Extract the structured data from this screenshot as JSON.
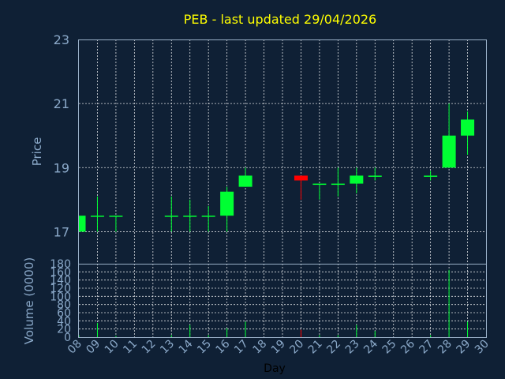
{
  "colors": {
    "background": "#0f2035",
    "up": "#00ff33",
    "down": "#ff0000",
    "title": "#ffff00",
    "axis_text": "#8ba9c9",
    "grid": "#ffffff"
  },
  "chart_data": {
    "type": "candlestick",
    "title": "PEB - last updated 29/04/2026",
    "xlabel": "Day",
    "price_ylabel": "Price",
    "volume_ylabel": "Volume (0000)",
    "x_ticks": [
      "08",
      "09",
      "10",
      "11",
      "12",
      "13",
      "14",
      "15",
      "16",
      "17",
      "18",
      "19",
      "20",
      "21",
      "22",
      "23",
      "24",
      "25",
      "26",
      "27",
      "28",
      "29",
      "30"
    ],
    "price_ylim": [
      16,
      23
    ],
    "price_ticks": [
      17,
      19,
      21,
      23
    ],
    "volume_ylim": [
      0,
      180
    ],
    "volume_ticks": [
      0,
      20,
      40,
      60,
      80,
      100,
      120,
      140,
      160,
      180
    ],
    "grid": true,
    "candles": [
      {
        "day": "08",
        "open": 17.0,
        "high": 17.5,
        "low": 17.0,
        "close": 17.5,
        "volume": 5
      },
      {
        "day": "09",
        "open": 17.5,
        "high": 18.1,
        "low": 17.0,
        "close": 17.5,
        "volume": 35
      },
      {
        "day": "10",
        "open": 17.5,
        "high": 17.5,
        "low": 17.0,
        "close": 17.5,
        "volume": 3
      },
      {
        "day": "13",
        "open": 17.5,
        "high": 18.1,
        "low": 17.0,
        "close": 17.5,
        "volume": 5
      },
      {
        "day": "14",
        "open": 17.5,
        "high": 18.0,
        "low": 17.0,
        "close": 17.5,
        "volume": 30
      },
      {
        "day": "15",
        "open": 17.5,
        "high": 17.8,
        "low": 17.0,
        "close": 17.5,
        "volume": 5
      },
      {
        "day": "16",
        "open": 17.5,
        "high": 18.4,
        "low": 17.0,
        "close": 18.25,
        "volume": 22
      },
      {
        "day": "17",
        "open": 18.4,
        "high": 19.0,
        "low": 18.4,
        "close": 18.75,
        "volume": 38
      },
      {
        "day": "20",
        "open": 18.75,
        "high": 18.75,
        "low": 18.0,
        "close": 18.6,
        "volume": 18
      },
      {
        "day": "21",
        "open": 18.5,
        "high": 18.5,
        "low": 18.0,
        "close": 18.5,
        "volume": 5
      },
      {
        "day": "22",
        "open": 18.5,
        "high": 19.0,
        "low": 18.1,
        "close": 18.5,
        "volume": 5
      },
      {
        "day": "23",
        "open": 18.5,
        "high": 19.0,
        "low": 18.2,
        "close": 18.75,
        "volume": 30
      },
      {
        "day": "24",
        "open": 18.75,
        "high": 19.0,
        "low": 18.6,
        "close": 18.75,
        "volume": 15
      },
      {
        "day": "27",
        "open": 18.75,
        "high": 18.9,
        "low": 18.6,
        "close": 18.75,
        "volume": 5
      },
      {
        "day": "28",
        "open": 19.0,
        "high": 21.0,
        "low": 19.0,
        "close": 20.0,
        "volume": 165
      },
      {
        "day": "29",
        "open": 20.0,
        "high": 20.75,
        "low": 19.4,
        "close": 20.5,
        "volume": 38
      }
    ]
  }
}
